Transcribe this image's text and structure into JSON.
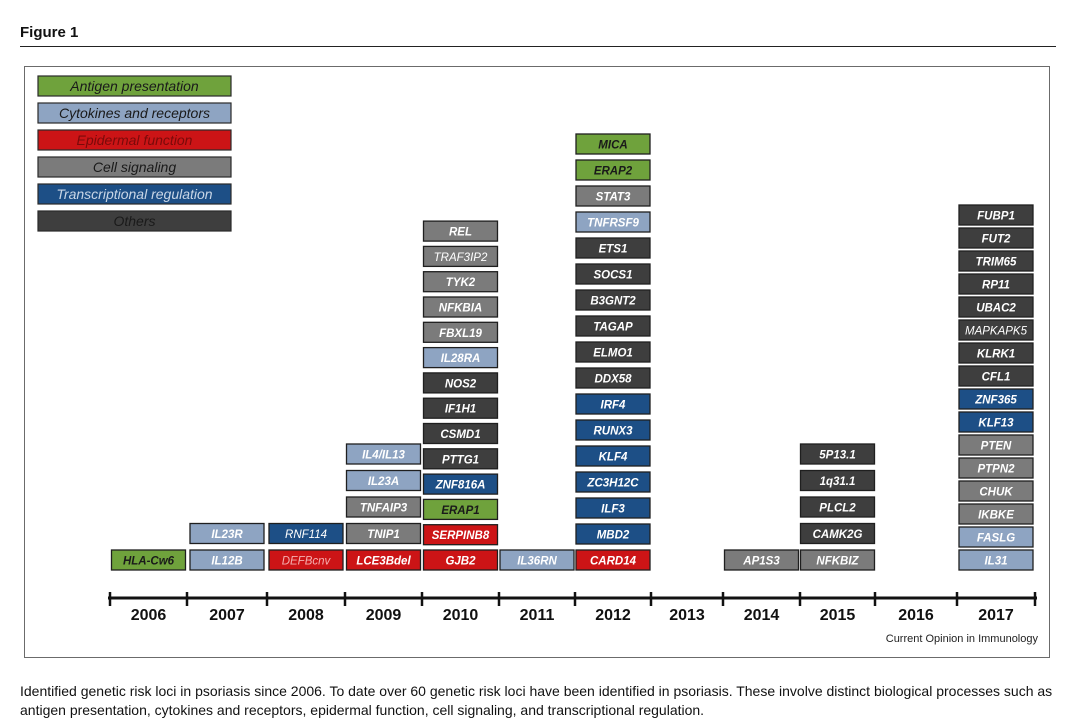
{
  "figure": {
    "title": "Figure 1",
    "credit": "Current Opinion in Immunology",
    "caption": "Identified genetic risk loci in psoriasis since 2006. To date over 60 genetic risk loci have been identified in psoriasis. These involve distinct biological processes such as antigen presentation, cytokines and receptors, epidermal function, cell signaling, and transcriptional regulation."
  },
  "legend": [
    {
      "key": "antigen",
      "label": "Antigen presentation",
      "color": "#6fa23c",
      "label_color": "#1a1a1a"
    },
    {
      "key": "cytokine",
      "label": "Cytokines and receptors",
      "color": "#8ea4c2",
      "label_color": "#1a1a1a"
    },
    {
      "key": "epidermal",
      "label": "Epidermal function",
      "color": "#cc1416",
      "label_color": "#7a0a0a"
    },
    {
      "key": "signaling",
      "label": "Cell signaling",
      "color": "#7b7b7b",
      "label_color": "#1a1a1a"
    },
    {
      "key": "transcription",
      "label": "Transcriptional regulation",
      "color": "#1d4f86",
      "label_color": "#c9d6e6"
    },
    {
      "key": "others",
      "label": "Others",
      "color": "#3e3e3e",
      "label_color": "#1a1a1a"
    }
  ],
  "years": [
    "2006",
    "2007",
    "2008",
    "2009",
    "2010",
    "2011",
    "2012",
    "2013",
    "2014",
    "2015",
    "2016",
    "2017"
  ],
  "loci": [
    {
      "year": "2006",
      "items": [
        {
          "gene": "HLA-Cw6",
          "category": "antigen"
        }
      ]
    },
    {
      "year": "2007",
      "items": [
        {
          "gene": "IL12B",
          "category": "cytokine"
        },
        {
          "gene": "IL23R",
          "category": "cytokine"
        }
      ]
    },
    {
      "year": "2008",
      "items": [
        {
          "gene": "DEFBcnv",
          "category": "epidermal"
        },
        {
          "gene": "RNF114",
          "category": "transcription"
        }
      ]
    },
    {
      "year": "2009",
      "items": [
        {
          "gene": "LCE3Bdel",
          "category": "epidermal"
        },
        {
          "gene": "TNIP1",
          "category": "signaling"
        },
        {
          "gene": "TNFAIP3",
          "category": "signaling"
        },
        {
          "gene": "IL23A",
          "category": "cytokine"
        },
        {
          "gene": "IL4/IL13",
          "category": "cytokine"
        }
      ]
    },
    {
      "year": "2010",
      "items": [
        {
          "gene": "GJB2",
          "category": "epidermal"
        },
        {
          "gene": "SERPINB8",
          "category": "epidermal"
        },
        {
          "gene": "ERAP1",
          "category": "antigen"
        },
        {
          "gene": "ZNF816A",
          "category": "transcription"
        },
        {
          "gene": "PTTG1",
          "category": "others"
        },
        {
          "gene": "CSMD1",
          "category": "others"
        },
        {
          "gene": "IF1H1",
          "category": "others"
        },
        {
          "gene": "NOS2",
          "category": "others"
        },
        {
          "gene": "IL28RA",
          "category": "cytokine"
        },
        {
          "gene": "FBXL19",
          "category": "signaling"
        },
        {
          "gene": "NFKBIA",
          "category": "signaling"
        },
        {
          "gene": "TYK2",
          "category": "signaling"
        },
        {
          "gene": "TRAF3IP2",
          "category": "signaling"
        },
        {
          "gene": "REL",
          "category": "signaling"
        }
      ]
    },
    {
      "year": "2011",
      "items": [
        {
          "gene": "IL36RN",
          "category": "cytokine"
        }
      ]
    },
    {
      "year": "2012",
      "items": [
        {
          "gene": "CARD14",
          "category": "epidermal"
        },
        {
          "gene": "MBD2",
          "category": "transcription"
        },
        {
          "gene": "ILF3",
          "category": "transcription"
        },
        {
          "gene": "ZC3H12C",
          "category": "transcription"
        },
        {
          "gene": "KLF4",
          "category": "transcription"
        },
        {
          "gene": "RUNX3",
          "category": "transcription"
        },
        {
          "gene": "IRF4",
          "category": "transcription"
        },
        {
          "gene": "DDX58",
          "category": "others"
        },
        {
          "gene": "ELMO1",
          "category": "others"
        },
        {
          "gene": "TAGAP",
          "category": "others"
        },
        {
          "gene": "B3GNT2",
          "category": "others"
        },
        {
          "gene": "SOCS1",
          "category": "others"
        },
        {
          "gene": "ETS1",
          "category": "others"
        },
        {
          "gene": "TNFRSF9",
          "category": "cytokine"
        },
        {
          "gene": "STAT3",
          "category": "signaling"
        },
        {
          "gene": "ERAP2",
          "category": "antigen"
        },
        {
          "gene": "MICA",
          "category": "antigen"
        }
      ]
    },
    {
      "year": "2013",
      "items": []
    },
    {
      "year": "2014",
      "items": [
        {
          "gene": "AP1S3",
          "category": "signaling"
        }
      ]
    },
    {
      "year": "2015",
      "items": [
        {
          "gene": "NFKBIZ",
          "category": "signaling"
        },
        {
          "gene": "CAMK2G",
          "category": "others"
        },
        {
          "gene": "PLCL2",
          "category": "others"
        },
        {
          "gene": "1q31.1",
          "category": "others"
        },
        {
          "gene": "5P13.1",
          "category": "others"
        }
      ]
    },
    {
      "year": "2016",
      "items": []
    },
    {
      "year": "2017",
      "items": [
        {
          "gene": "IL31",
          "category": "cytokine"
        },
        {
          "gene": "FASLG",
          "category": "cytokine"
        },
        {
          "gene": "IKBKE",
          "category": "signaling"
        },
        {
          "gene": "CHUK",
          "category": "signaling"
        },
        {
          "gene": "PTPN2",
          "category": "signaling"
        },
        {
          "gene": "PTEN",
          "category": "signaling"
        },
        {
          "gene": "KLF13",
          "category": "transcription"
        },
        {
          "gene": "ZNF365",
          "category": "transcription"
        },
        {
          "gene": "CFL1",
          "category": "others"
        },
        {
          "gene": "KLRK1",
          "category": "others"
        },
        {
          "gene": "MAPKAPK5",
          "category": "others"
        },
        {
          "gene": "UBAC2",
          "category": "others"
        },
        {
          "gene": "RP11",
          "category": "others"
        },
        {
          "gene": "TRIM65",
          "category": "others"
        },
        {
          "gene": "FUT2",
          "category": "others"
        },
        {
          "gene": "FUBP1",
          "category": "others"
        }
      ]
    }
  ]
}
